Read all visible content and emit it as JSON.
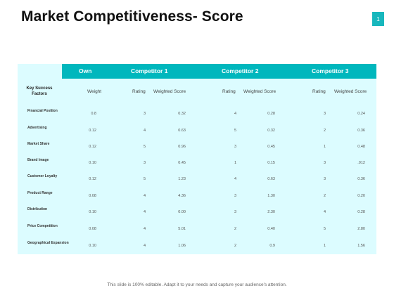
{
  "title": "Market Competitiveness- Score",
  "page_number": "1",
  "table": {
    "header": [
      "Own",
      "Competitor 1",
      "Competitor 2",
      "Competitor 3"
    ],
    "subheaders": {
      "key_success_factors": "Key Success Factors",
      "weight": "Weight",
      "c1_rating": "Rating",
      "c1_weighted": "Weighted Score",
      "c2_rating": "Rating",
      "c2_weighted": "Weighted Score",
      "c3_rating": "Rating",
      "c3_weighted": "Weighted Score"
    },
    "rows": [
      {
        "factor": "Financial Position",
        "weight": "0.8",
        "c1_rating": "3",
        "c1_score": "0.32",
        "c2_rating": "4",
        "c2_score": "0.28",
        "c3_rating": "3",
        "c3_score": "0.24"
      },
      {
        "factor": "Advertising",
        "weight": "0.12",
        "c1_rating": "4",
        "c1_score": "0.63",
        "c2_rating": "5",
        "c2_score": "0.32",
        "c3_rating": "2",
        "c3_score": "0.36"
      },
      {
        "factor": "Market Share",
        "weight": "0.12",
        "c1_rating": "5",
        "c1_score": "0.96",
        "c2_rating": "3",
        "c2_score": "0.45",
        "c3_rating": "1",
        "c3_score": "0.48"
      },
      {
        "factor": "Brand Image",
        "weight": "0.10",
        "c1_rating": "3",
        "c1_score": "0.45",
        "c2_rating": "1",
        "c2_score": "0.15",
        "c3_rating": "3",
        "c3_score": ".012"
      },
      {
        "factor": "Customer Loyalty",
        "weight": "0.12",
        "c1_rating": "5",
        "c1_score": "1.23",
        "c2_rating": "4",
        "c2_score": "0.63",
        "c3_rating": "3",
        "c3_score": "0.36"
      },
      {
        "factor": "Product Range",
        "weight": "0.08",
        "c1_rating": "4",
        "c1_score": "4.36",
        "c2_rating": "3",
        "c2_score": "1.30",
        "c3_rating": "2",
        "c3_score": "0.20"
      },
      {
        "factor": "Distribution",
        "weight": "0.10",
        "c1_rating": "4",
        "c1_score": "0.00",
        "c2_rating": "3",
        "c2_score": "2.30",
        "c3_rating": "4",
        "c3_score": "0.28"
      },
      {
        "factor": "Price Competition",
        "weight": "0.08",
        "c1_rating": "4",
        "c1_score": "5.01",
        "c2_rating": "2",
        "c2_score": "0.40",
        "c3_rating": "5",
        "c3_score": "2.80"
      },
      {
        "factor": "Geographical Expansion",
        "weight": "0.10",
        "c1_rating": "4",
        "c1_score": "1.06",
        "c2_rating": "2",
        "c2_score": "0.9",
        "c3_rating": "1",
        "c3_score": "1.56"
      }
    ]
  },
  "footer": "This slide is 100% editable. Adapt it to your needs and capture your audience's attention.",
  "colors": {
    "accent": "#00b7bd",
    "table_bg": "#dcfcff"
  }
}
